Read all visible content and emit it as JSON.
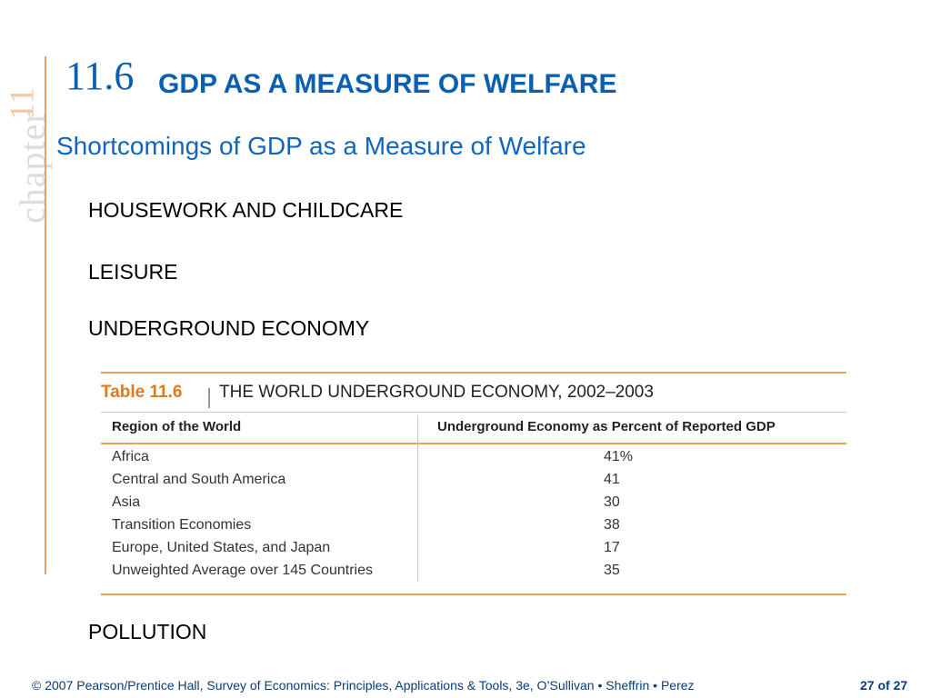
{
  "sidebar": {
    "label": "chapter",
    "number": "11"
  },
  "header": {
    "section_number": "11.6",
    "section_title": "GDP AS A MEASURE OF WELFARE",
    "subtitle": "Shortcomings of GDP as a Measure of Welfare"
  },
  "topics": [
    "HOUSEWORK AND CHILDCARE",
    "LEISURE",
    "UNDERGROUND ECONOMY",
    "POLLUTION"
  ],
  "table": {
    "label": "Table 11.6",
    "title": "THE WORLD UNDERGROUND ECONOMY, 2002–2003",
    "columns": [
      "Region of the World",
      "Underground Economy as Percent of Reported GDP"
    ],
    "rows": [
      {
        "region": "Africa",
        "value": "41%"
      },
      {
        "region": "Central and South America",
        "value": "41"
      },
      {
        "region": "Asia",
        "value": "30"
      },
      {
        "region": "Transition Economies",
        "value": "38"
      },
      {
        "region": "Europe, United States, and Japan",
        "value": "17"
      },
      {
        "region": "Unweighted Average over 145 Countries",
        "value": "35"
      }
    ]
  },
  "footer": {
    "citation": "© 2007 Pearson/Prentice Hall, Survey of Economics: Principles, Applications & Tools, 3e, O’Sullivan • Sheffrin • Perez",
    "page": "27 of 27"
  },
  "colors": {
    "heading_blue": "#0b5fb0",
    "accent_orange": "#e8a25a",
    "table_label_orange": "#e07a1c"
  }
}
